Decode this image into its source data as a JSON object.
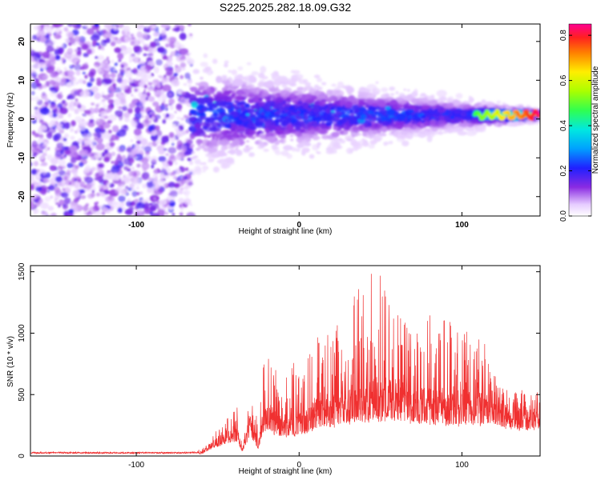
{
  "title": "S225.2025.282.18.09.G32",
  "chart_data": [
    {
      "type": "heatmap",
      "name": "spectrogram",
      "xlabel": "Height of straight line (km)",
      "ylabel": "Frequency (Hz)",
      "xlim": [
        -165,
        148
      ],
      "ylim": [
        -25,
        24.5
      ],
      "xticks": [
        -100,
        0,
        100
      ],
      "yticks": [
        -20,
        -10,
        0,
        10,
        20
      ],
      "colorbar": {
        "label": "Normalized spectral amplitude",
        "range": [
          0.0,
          0.85
        ],
        "ticks": [
          0.0,
          0.2,
          0.4,
          0.6,
          0.8
        ],
        "tick_labels": [
          "0.0",
          "0.2",
          "0.4",
          "0.6",
          "0.8"
        ]
      },
      "description_series": [
        {
          "name": "noise region",
          "x_range": [
            -165,
            -65
          ],
          "freq_spread": [
            -25,
            24.5
          ],
          "amplitude_range": [
            0.05,
            0.2
          ]
        },
        {
          "name": "signal band",
          "x_range": [
            -65,
            148
          ],
          "center_freq": 1,
          "amplitude_range": [
            0.1,
            0.85
          ]
        }
      ],
      "x_tick_labels": [
        "-100",
        "0",
        "100"
      ],
      "y_tick_labels": [
        "-20",
        "-10",
        "0",
        "10",
        "20"
      ]
    },
    {
      "type": "line",
      "name": "snr",
      "xlabel": "Height of straight line (km)",
      "ylabel": "SNR (10 * v/v)",
      "xlim": [
        -165,
        148
      ],
      "ylim": [
        0,
        1550
      ],
      "xticks": [
        -100,
        0,
        100
      ],
      "yticks": [
        0,
        500,
        1000,
        1500
      ],
      "x_tick_labels": [
        "-100",
        "0",
        "100"
      ],
      "y_tick_labels": [
        "0",
        "500",
        "1000",
        "1500"
      ],
      "color": "#f03030",
      "envelope": {
        "x": [
          -165,
          -70,
          -60,
          -55,
          -45,
          -38,
          -35,
          -30,
          -25,
          -22,
          -18,
          -15,
          -5,
          5,
          10,
          20,
          30,
          40,
          50,
          55,
          60,
          70,
          80,
          90,
          100,
          110,
          115,
          120,
          125,
          135,
          148
        ],
        "base": [
          25,
          25,
          30,
          100,
          180,
          230,
          60,
          300,
          100,
          350,
          400,
          300,
          300,
          350,
          420,
          450,
          500,
          520,
          550,
          560,
          550,
          520,
          500,
          480,
          470,
          480,
          470,
          500,
          440,
          400,
          420
        ],
        "peak": [
          30,
          30,
          60,
          150,
          300,
          400,
          80,
          480,
          300,
          800,
          850,
          700,
          750,
          850,
          1100,
          1050,
          1150,
          1550,
          1480,
          1550,
          1350,
          1200,
          1150,
          1120,
          1050,
          1000,
          900,
          700,
          570,
          540,
          520
        ]
      }
    }
  ]
}
